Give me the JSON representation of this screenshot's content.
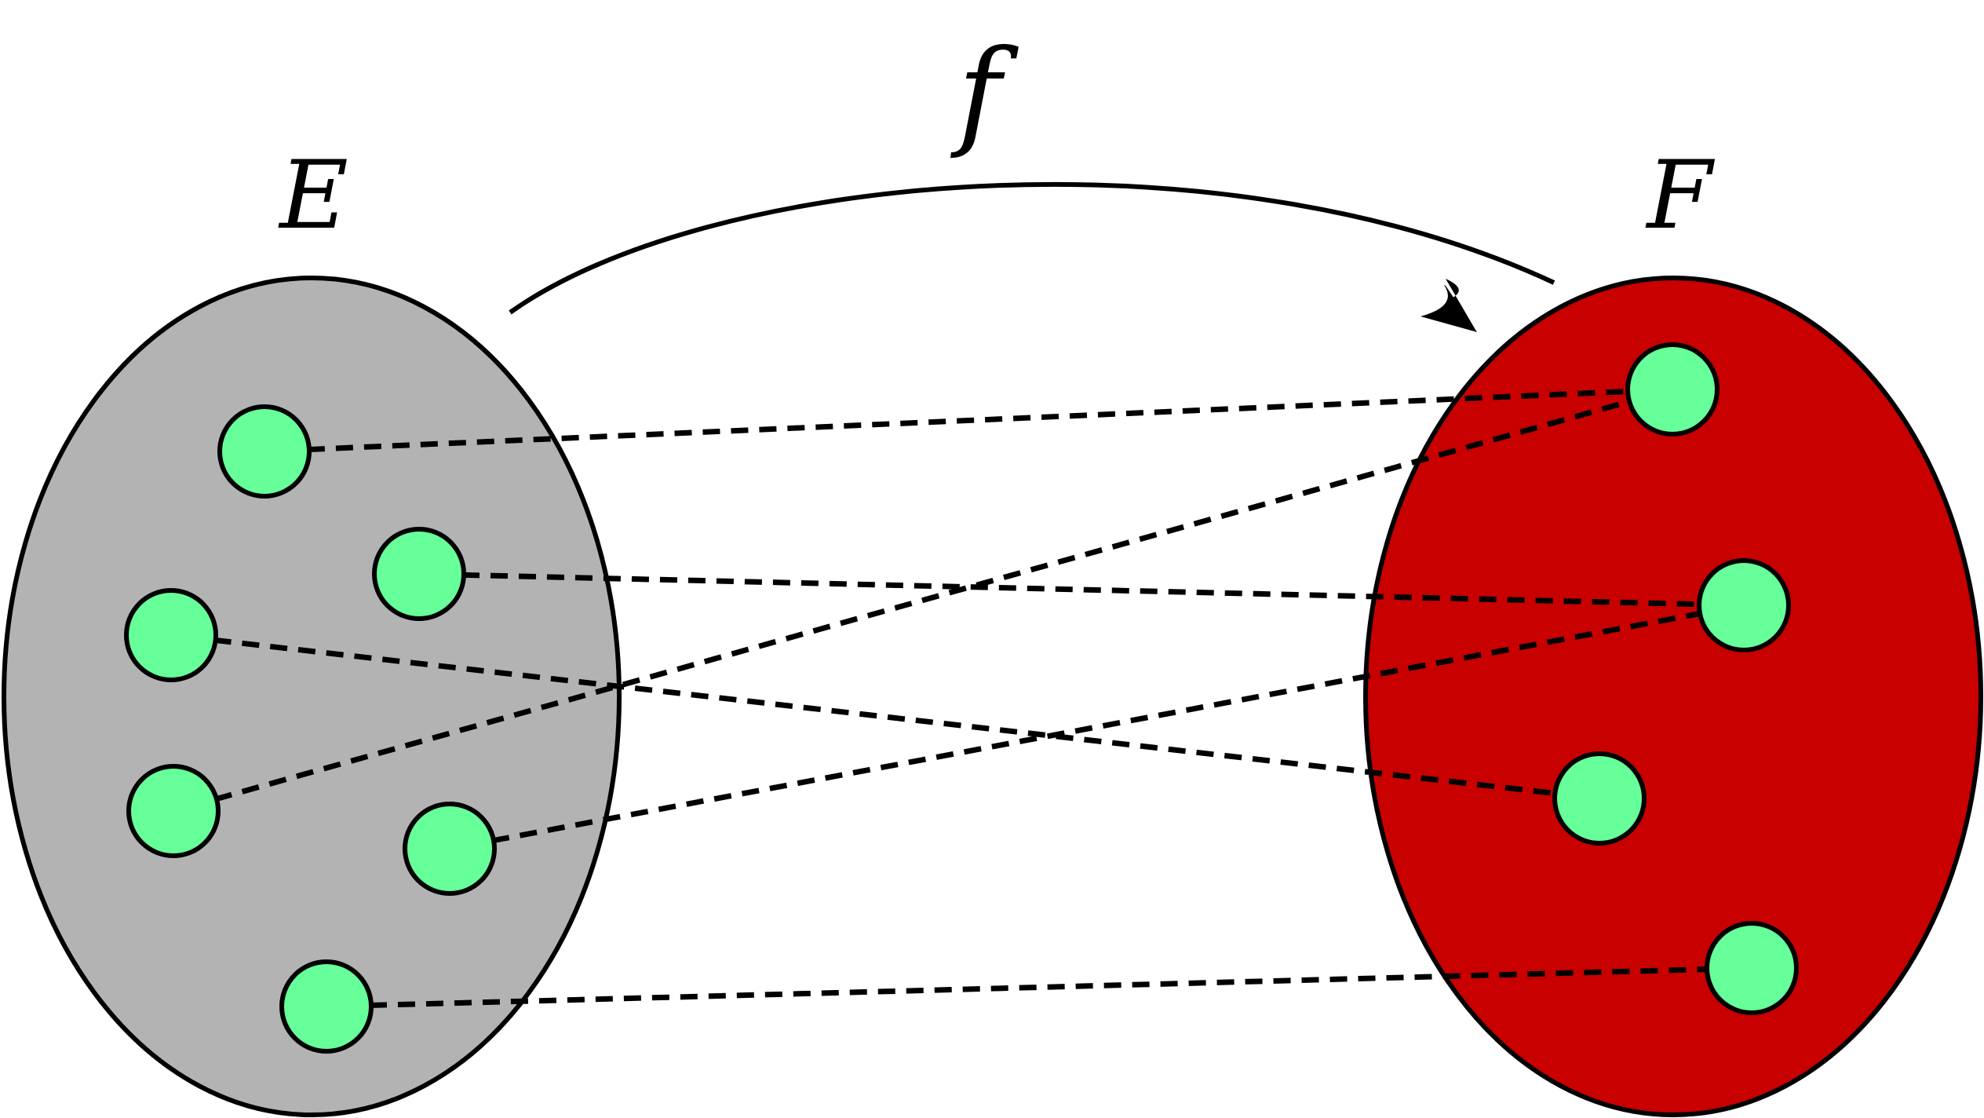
{
  "diagram": {
    "map_label": "f",
    "domain": {
      "label": "E",
      "fill": "#b3b3b3"
    },
    "codomain": {
      "label": "F",
      "fill": "#c80000"
    },
    "element_fill": "#66ff99",
    "domain_elements": [
      "e1",
      "e2",
      "e3",
      "e4",
      "e5",
      "e6"
    ],
    "codomain_elements": [
      "f1",
      "f2",
      "f3",
      "f4"
    ],
    "mapping": [
      {
        "from": "e1",
        "to": "f1"
      },
      {
        "from": "e4",
        "to": "f1"
      },
      {
        "from": "e2",
        "to": "f2"
      },
      {
        "from": "e5",
        "to": "f2"
      },
      {
        "from": "e3",
        "to": "f3"
      },
      {
        "from": "e6",
        "to": "f4"
      }
    ]
  }
}
